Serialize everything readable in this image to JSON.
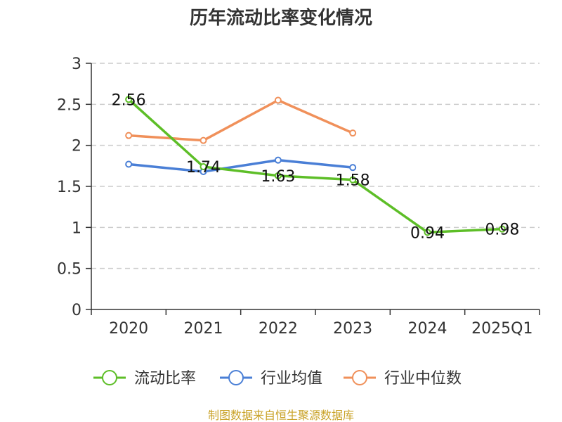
{
  "chart_data": {
    "type": "line",
    "title": "历年流动比率变化情况",
    "categories": [
      "2020",
      "2021",
      "2022",
      "2023",
      "2024",
      "2025Q1"
    ],
    "ylim": [
      0,
      3
    ],
    "yticks": [
      0,
      0.5,
      1,
      1.5,
      2,
      2.5,
      3
    ],
    "ytick_labels": [
      "0",
      "0.5",
      "1",
      "1.5",
      "2",
      "2.5",
      "3"
    ],
    "grid": true,
    "legend_position": "bottom",
    "series": [
      {
        "name": "流动比率",
        "color": "#5dbe27",
        "values": [
          2.56,
          1.74,
          1.63,
          1.58,
          0.94,
          0.98
        ],
        "labels": [
          "2.56",
          "1.74",
          "1.63",
          "1.58",
          "0.94",
          "0.98"
        ],
        "show_labels": true
      },
      {
        "name": "行业均值",
        "color": "#4a7fd6",
        "values": [
          1.77,
          1.68,
          1.82,
          1.73,
          null,
          null
        ],
        "show_labels": false
      },
      {
        "name": "行业中位数",
        "color": "#f0905a",
        "values": [
          2.12,
          2.06,
          2.55,
          2.15,
          null,
          null
        ],
        "show_labels": false
      }
    ],
    "source": "制图数据来自恒生聚源数据库"
  }
}
